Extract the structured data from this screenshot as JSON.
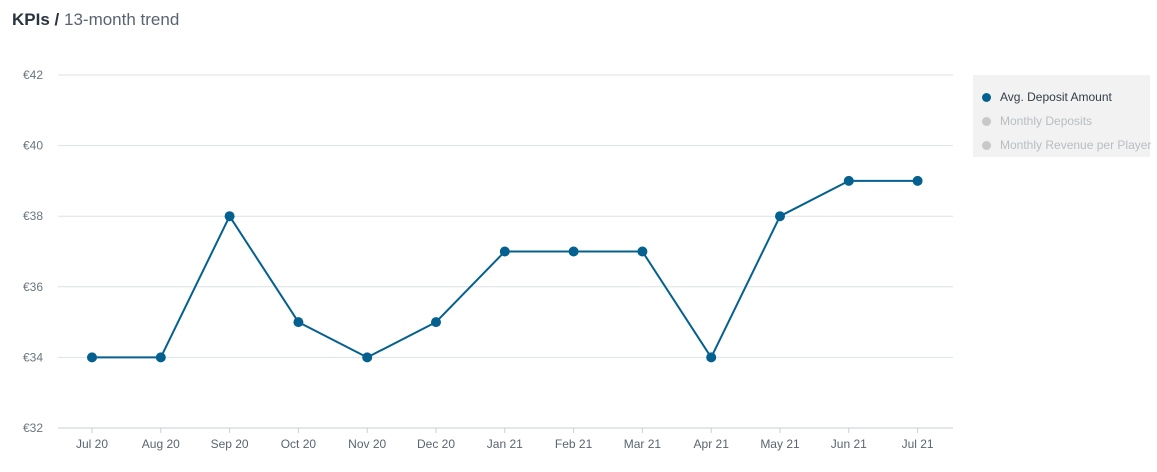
{
  "header": {
    "title": "KPIs",
    "separator": "/",
    "subtitle": "13-month trend"
  },
  "legend": {
    "items": [
      {
        "label": "Avg. Deposit Amount",
        "color": "#04608f",
        "active": true
      },
      {
        "label": "Monthly Deposits",
        "color": "#c8c8c8",
        "active": false
      },
      {
        "label": "Monthly Revenue per Player",
        "color": "#c8c8c8",
        "active": false
      }
    ]
  },
  "chart_data": {
    "type": "line",
    "categories": [
      "Jul 20",
      "Aug 20",
      "Sep 20",
      "Oct 20",
      "Nov 20",
      "Dec 20",
      "Jan 21",
      "Feb 21",
      "Mar 21",
      "Apr 21",
      "May 21",
      "Jun 21",
      "Jul 21"
    ],
    "series": [
      {
        "name": "Avg. Deposit Amount",
        "color": "#04608f",
        "values": [
          34,
          34,
          38,
          35,
          34,
          35,
          37,
          37,
          37,
          34,
          38,
          39,
          39
        ]
      }
    ],
    "ylim": [
      32,
      42
    ],
    "yticks": [
      32,
      34,
      36,
      38,
      40,
      42
    ],
    "ytick_labels": [
      "€32",
      "€34",
      "€36",
      "€38",
      "€40",
      "€42"
    ],
    "grid": true,
    "legend_position": "right"
  }
}
